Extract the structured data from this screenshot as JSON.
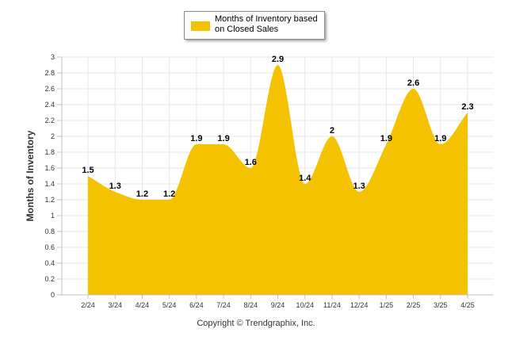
{
  "chart_data": {
    "type": "area",
    "categories": [
      "2/24",
      "3/24",
      "4/24",
      "5/24",
      "6/24",
      "7/24",
      "8/24",
      "9/24",
      "10/24",
      "11/24",
      "12/24",
      "1/25",
      "2/25",
      "3/25",
      "4/25"
    ],
    "series": [
      {
        "name": "Months of Inventory based on Closed Sales",
        "values": [
          1.5,
          1.3,
          1.2,
          1.2,
          1.9,
          1.9,
          1.6,
          2.9,
          1.4,
          2.0,
          1.3,
          1.9,
          2.6,
          1.9,
          2.3
        ],
        "labels": [
          "1.5",
          "1.3",
          "1.2",
          "1.2",
          "1.9",
          "1.9",
          "1.6",
          "2.9",
          "1.4",
          "2",
          "1.3",
          "1.9",
          "2.6",
          "1.9",
          "2.3"
        ],
        "color": "#F5C200"
      }
    ],
    "ylabel": "Months of Inventory",
    "xlabel": "",
    "ylim": [
      0,
      3
    ],
    "yticks": [
      "0",
      "0.2",
      "0.4",
      "0.6",
      "0.8",
      "1",
      "1.2",
      "1.4",
      "1.6",
      "1.8",
      "2",
      "2.2",
      "2.4",
      "2.6",
      "2.8",
      "3"
    ],
    "grid": true,
    "legend_position": "top"
  },
  "legend": {
    "line1": "Months of Inventory based",
    "line2": "on Closed Sales"
  },
  "footer": {
    "copyright": "Copyright © Trendgraphix, Inc."
  },
  "colors": {
    "area": "#F5C200",
    "grid": "#e6e6e6",
    "axis": "#c0c0c0"
  }
}
